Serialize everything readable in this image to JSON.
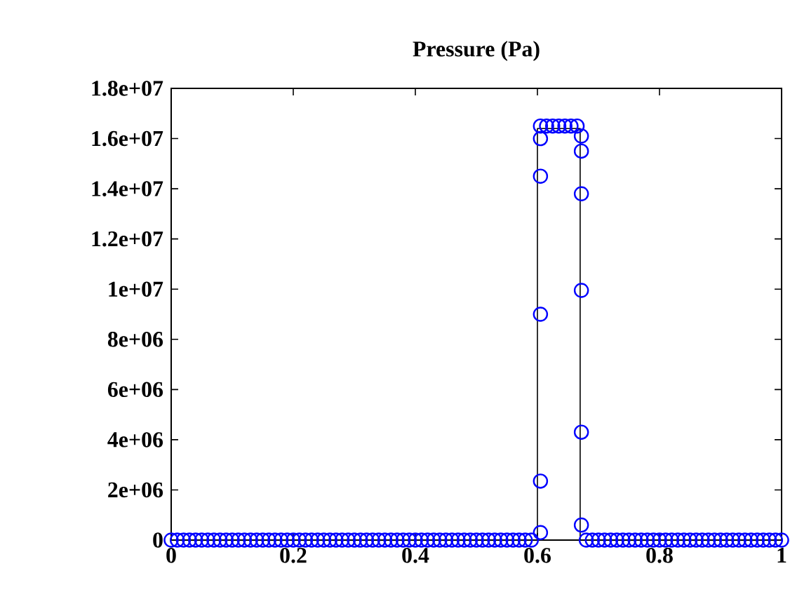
{
  "chart_data": {
    "type": "scatter",
    "title": "Pressure (Pa)",
    "xlim": [
      0,
      1
    ],
    "xticks": [
      0,
      0.2,
      0.4,
      0.6,
      0.8,
      1
    ],
    "ylim": [
      0,
      18000000
    ],
    "yticks": [
      0,
      {
        "value": 2000000,
        "label": "2e+06"
      },
      {
        "value": 4000000,
        "label": "4e+06"
      },
      {
        "value": 6000000,
        "label": "6e+06"
      },
      {
        "value": 8000000,
        "label": "8e+06"
      },
      {
        "value": 10000000,
        "label": "1e+07"
      },
      {
        "value": 12000000,
        "label": "1.2e+07"
      },
      {
        "value": 14000000,
        "label": "1.4e+07"
      },
      {
        "value": 16000000,
        "label": "1.6e+07"
      },
      {
        "value": 18000000,
        "label": "1.8e+07"
      }
    ],
    "grid": false,
    "series": [
      {
        "type": "line",
        "color": "#000000",
        "x": [
          0,
          0.6,
          0.6,
          0.67,
          0.67,
          1
        ],
        "values": [
          0,
          0,
          16400000,
          16400000,
          0,
          0
        ]
      },
      {
        "marker": "circle",
        "color": "#0000ff",
        "x": [
          0,
          0.01,
          0.02,
          0.03,
          0.04,
          0.05,
          0.06,
          0.07,
          0.08,
          0.09,
          0.1,
          0.11,
          0.12,
          0.13,
          0.14,
          0.15,
          0.16,
          0.17,
          0.18,
          0.19,
          0.2,
          0.21,
          0.22,
          0.23,
          0.24,
          0.25,
          0.26,
          0.27,
          0.28,
          0.29,
          0.3,
          0.31,
          0.32,
          0.33,
          0.34,
          0.35,
          0.36,
          0.37,
          0.38,
          0.39,
          0.4,
          0.41,
          0.42,
          0.43,
          0.44,
          0.45,
          0.46,
          0.47,
          0.48,
          0.49,
          0.5,
          0.51,
          0.52,
          0.53,
          0.54,
          0.55,
          0.56,
          0.57,
          0.58,
          0.59,
          0.605,
          0.605,
          0.605,
          0.605,
          0.605,
          0.605,
          0.615,
          0.625,
          0.635,
          0.645,
          0.655,
          0.665,
          0.672,
          0.672,
          0.672,
          0.672,
          0.672,
          0.672,
          0.68,
          0.69,
          0.7,
          0.71,
          0.72,
          0.73,
          0.74,
          0.75,
          0.76,
          0.77,
          0.78,
          0.79,
          0.8,
          0.81,
          0.82,
          0.83,
          0.84,
          0.85,
          0.86,
          0.87,
          0.88,
          0.89,
          0.9,
          0.91,
          0.92,
          0.93,
          0.94,
          0.95,
          0.96,
          0.97,
          0.98,
          0.99,
          1
        ],
        "values": [
          0,
          0,
          0,
          0,
          0,
          0,
          0,
          0,
          0,
          0,
          0,
          0,
          0,
          0,
          0,
          0,
          0,
          0,
          0,
          0,
          0,
          0,
          0,
          0,
          0,
          0,
          0,
          0,
          0,
          0,
          0,
          0,
          0,
          0,
          0,
          0,
          0,
          0,
          0,
          0,
          0,
          0,
          0,
          0,
          0,
          0,
          0,
          0,
          0,
          0,
          0,
          0,
          0,
          0,
          0,
          0,
          0,
          0,
          0,
          0,
          300000,
          2350000,
          9000000,
          14500000,
          16000000,
          16500000,
          16500000,
          16500000,
          16500000,
          16500000,
          16500000,
          16500000,
          16100000,
          15500000,
          13800000,
          9950000,
          4300000,
          600000,
          0,
          0,
          0,
          0,
          0,
          0,
          0,
          0,
          0,
          0,
          0,
          0,
          0,
          0,
          0,
          0,
          0,
          0,
          0,
          0,
          0,
          0,
          0,
          0,
          0,
          0,
          0,
          0,
          0,
          0,
          0,
          0,
          0
        ]
      }
    ]
  }
}
